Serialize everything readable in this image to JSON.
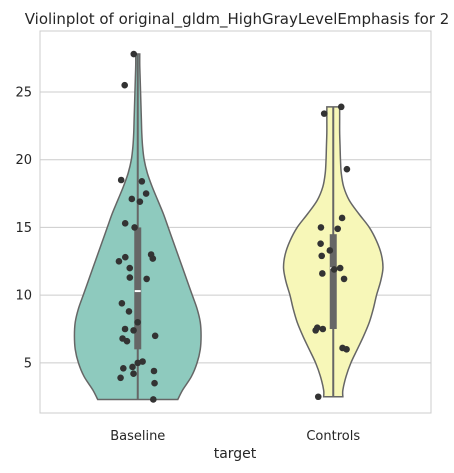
{
  "chart_data": {
    "type": "violin",
    "title": "Violinplot of original_gldm_HighGrayLevelEmphasis for 2",
    "xlabel": "target",
    "ylabel": "",
    "categories": [
      "Baseline",
      "Controls"
    ],
    "ylim": [
      1.3,
      29.5
    ],
    "yticks": [
      5,
      10,
      15,
      20,
      25
    ],
    "grid": true,
    "colors": {
      "Baseline": "#8ecabe",
      "Controls": "#f7f7b8",
      "points": "#333333",
      "box": "#666666",
      "outline": "#666666",
      "grid": "#cccccc"
    },
    "violins": [
      {
        "category": "Baseline",
        "min": 2.3,
        "max": 27.8,
        "q1": 6.0,
        "median": 10.3,
        "q3": 15.0,
        "density": [
          [
            2.3,
            0.5
          ],
          [
            3.0,
            0.56
          ],
          [
            4.0,
            0.67
          ],
          [
            5.0,
            0.74
          ],
          [
            6.0,
            0.78
          ],
          [
            7.0,
            0.79
          ],
          [
            8.0,
            0.78
          ],
          [
            9.0,
            0.74
          ],
          [
            10.0,
            0.68
          ],
          [
            11.0,
            0.62
          ],
          [
            12.0,
            0.56
          ],
          [
            13.0,
            0.5
          ],
          [
            14.0,
            0.44
          ],
          [
            15.0,
            0.38
          ],
          [
            16.0,
            0.32
          ],
          [
            17.0,
            0.25
          ],
          [
            18.0,
            0.18
          ],
          [
            19.0,
            0.12
          ],
          [
            20.0,
            0.08
          ],
          [
            21.0,
            0.06
          ],
          [
            22.0,
            0.05
          ],
          [
            23.0,
            0.045
          ],
          [
            24.0,
            0.04
          ],
          [
            25.0,
            0.035
          ],
          [
            26.0,
            0.03
          ],
          [
            27.0,
            0.025
          ],
          [
            27.8,
            0.025
          ]
        ],
        "points": [
          2.3,
          3.5,
          3.9,
          4.2,
          4.4,
          4.6,
          4.7,
          5.0,
          5.1,
          6.6,
          6.8,
          7.0,
          7.4,
          7.5,
          8.0,
          8.8,
          9.4,
          11.2,
          11.3,
          12.0,
          12.5,
          12.7,
          12.8,
          13.0,
          15.0,
          15.3,
          16.9,
          17.1,
          17.5,
          18.4,
          18.5,
          25.5,
          27.8
        ]
      },
      {
        "category": "Controls",
        "min": 2.5,
        "max": 23.9,
        "q1": 7.5,
        "median": 12.0,
        "q3": 14.5,
        "density": [
          [
            2.5,
            0.12
          ],
          [
            3.0,
            0.12
          ],
          [
            4.0,
            0.16
          ],
          [
            5.0,
            0.22
          ],
          [
            6.0,
            0.3
          ],
          [
            7.0,
            0.38
          ],
          [
            8.0,
            0.45
          ],
          [
            9.0,
            0.5
          ],
          [
            10.0,
            0.54
          ],
          [
            11.0,
            0.59
          ],
          [
            12.0,
            0.62
          ],
          [
            13.0,
            0.6
          ],
          [
            14.0,
            0.54
          ],
          [
            15.0,
            0.45
          ],
          [
            16.0,
            0.32
          ],
          [
            17.0,
            0.2
          ],
          [
            18.0,
            0.13
          ],
          [
            19.0,
            0.1
          ],
          [
            20.0,
            0.09
          ],
          [
            21.0,
            0.085
          ],
          [
            22.0,
            0.08
          ],
          [
            23.0,
            0.08
          ],
          [
            23.9,
            0.08
          ]
        ],
        "points": [
          2.5,
          6.0,
          6.1,
          7.4,
          7.5,
          7.6,
          11.2,
          11.6,
          11.9,
          12.0,
          12.9,
          13.3,
          13.8,
          14.9,
          15.0,
          15.7,
          19.3,
          23.4,
          23.9
        ]
      }
    ]
  }
}
